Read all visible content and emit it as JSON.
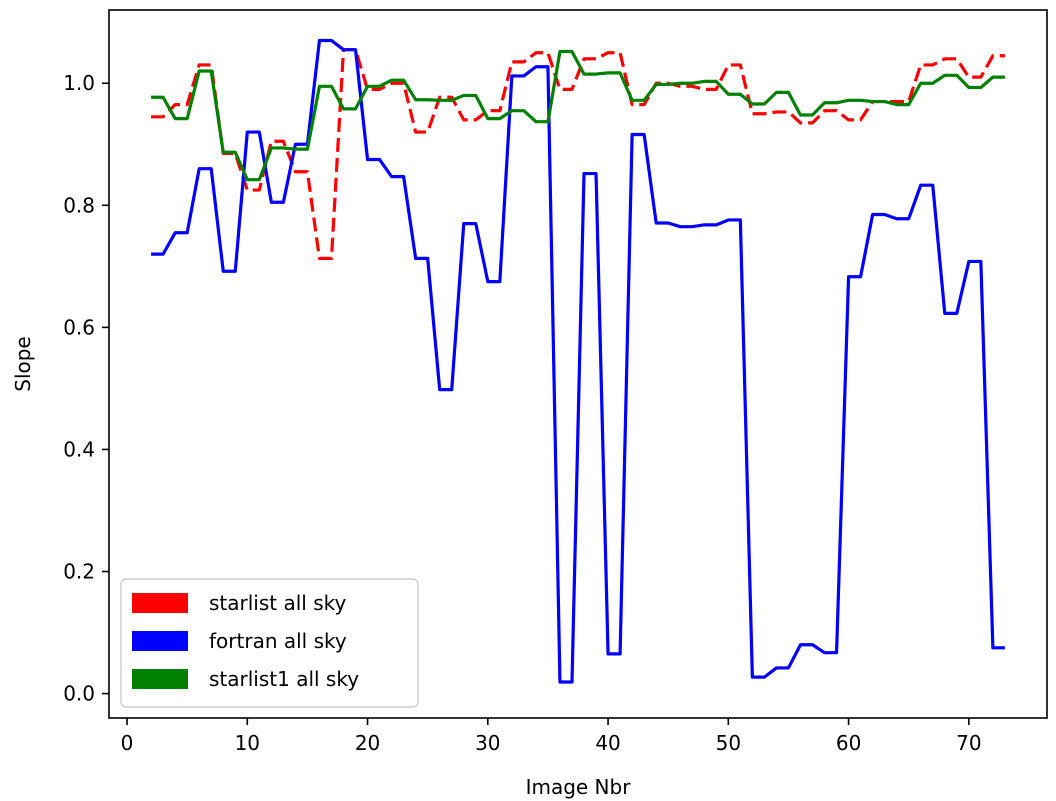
{
  "chart_data": {
    "type": "line",
    "xlabel": "Image Nbr",
    "ylabel": "Slope",
    "xlim": [
      -1.5,
      76.5
    ],
    "ylim": [
      -0.04,
      1.12
    ],
    "x_ticks": [
      0,
      10,
      20,
      30,
      40,
      50,
      60,
      70
    ],
    "x_tick_labels": [
      "0",
      "10",
      "20",
      "30",
      "40",
      "50",
      "60",
      "70"
    ],
    "y_ticks": [
      0.0,
      0.2,
      0.4,
      0.6,
      0.8,
      1.0
    ],
    "y_tick_labels": [
      "0.0",
      "0.2",
      "0.4",
      "0.6",
      "0.8",
      "1.0"
    ],
    "grid": false,
    "legend_position": "lower-left",
    "x": [
      2,
      3,
      4,
      5,
      6,
      7,
      8,
      9,
      10,
      11,
      12,
      13,
      14,
      15,
      16,
      17,
      18,
      19,
      20,
      21,
      22,
      23,
      24,
      25,
      26,
      27,
      28,
      29,
      30,
      31,
      32,
      33,
      34,
      35,
      36,
      37,
      38,
      39,
      40,
      41,
      42,
      43,
      44,
      45,
      46,
      47,
      48,
      49,
      50,
      51,
      52,
      53,
      54,
      55,
      56,
      57,
      58,
      59,
      60,
      61,
      62,
      63,
      64,
      65,
      66,
      67,
      68,
      69,
      70,
      71,
      72,
      73
    ],
    "series": [
      {
        "name": "starlist all sky",
        "color": "#ff0000",
        "dash": "dashed",
        "values": [
          0.945,
          0.945,
          0.965,
          0.965,
          1.03,
          1.03,
          0.885,
          0.885,
          0.825,
          0.825,
          0.905,
          0.905,
          0.855,
          0.855,
          0.713,
          0.713,
          1.055,
          1.055,
          0.99,
          0.99,
          1.0,
          1.0,
          0.92,
          0.92,
          0.977,
          0.977,
          0.94,
          0.94,
          0.955,
          0.955,
          1.035,
          1.035,
          1.05,
          1.05,
          0.99,
          0.99,
          1.04,
          1.04,
          1.05,
          1.05,
          0.965,
          0.965,
          1.0,
          1.0,
          0.995,
          0.995,
          0.99,
          0.99,
          1.03,
          1.03,
          0.95,
          0.95,
          0.953,
          0.953,
          0.935,
          0.935,
          0.955,
          0.955,
          0.94,
          0.94,
          0.97,
          0.97,
          0.97,
          0.97,
          1.03,
          1.03,
          1.04,
          1.04,
          1.01,
          1.01,
          1.045,
          1.045
        ]
      },
      {
        "name": "fortran all sky",
        "color": "#0000ff",
        "dash": "solid",
        "values": [
          0.72,
          0.72,
          0.755,
          0.755,
          0.86,
          0.86,
          0.692,
          0.692,
          0.92,
          0.92,
          0.805,
          0.805,
          0.9,
          0.9,
          1.07,
          1.07,
          1.055,
          1.055,
          0.875,
          0.875,
          0.847,
          0.847,
          0.713,
          0.713,
          0.498,
          0.498,
          0.77,
          0.77,
          0.675,
          0.675,
          1.012,
          1.012,
          1.027,
          1.027,
          0.019,
          0.019,
          0.852,
          0.852,
          0.065,
          0.065,
          0.916,
          0.916,
          0.771,
          0.771,
          0.765,
          0.765,
          0.768,
          0.768,
          0.776,
          0.776,
          0.027,
          0.027,
          0.042,
          0.042,
          0.08,
          0.08,
          0.067,
          0.067,
          0.683,
          0.683,
          0.785,
          0.785,
          0.778,
          0.778,
          0.833,
          0.833,
          0.623,
          0.623,
          0.708,
          0.708,
          0.075,
          0.075
        ]
      },
      {
        "name": "starlist1 all sky",
        "color": "#008000",
        "dash": "solid",
        "values": [
          0.977,
          0.977,
          0.942,
          0.942,
          1.02,
          1.02,
          0.887,
          0.887,
          0.842,
          0.842,
          0.894,
          0.894,
          0.892,
          0.892,
          0.995,
          0.995,
          0.958,
          0.958,
          0.995,
          0.995,
          1.005,
          1.005,
          0.973,
          0.973,
          0.972,
          0.972,
          0.98,
          0.98,
          0.942,
          0.942,
          0.955,
          0.955,
          0.937,
          0.937,
          1.052,
          1.052,
          1.015,
          1.015,
          1.017,
          1.017,
          0.972,
          0.972,
          0.998,
          0.998,
          1.0,
          1.0,
          1.003,
          1.003,
          0.982,
          0.982,
          0.966,
          0.966,
          0.985,
          0.985,
          0.948,
          0.948,
          0.968,
          0.968,
          0.972,
          0.972,
          0.97,
          0.97,
          0.965,
          0.965,
          1.0,
          1.0,
          1.013,
          1.013,
          0.993,
          0.993,
          1.01,
          1.01
        ]
      }
    ]
  }
}
